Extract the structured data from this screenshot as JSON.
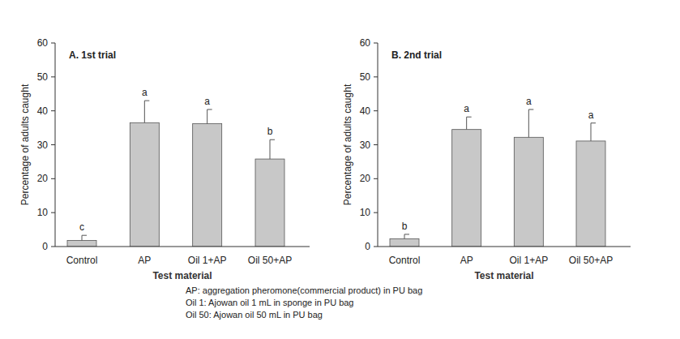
{
  "chart_data": [
    {
      "type": "bar",
      "title": "A. 1st trial",
      "categories": [
        "Control",
        "AP",
        "Oil 1+AP",
        "Oil 50+AP"
      ],
      "values": [
        1.8,
        36.5,
        36.2,
        25.8
      ],
      "errors": [
        1.5,
        6.5,
        4.2,
        5.7
      ],
      "annotations": [
        "c",
        "a",
        "a",
        "b"
      ],
      "color": "#c8c8c8",
      "x_label": "Test material",
      "y_label": "Percentage of adults caught",
      "ylim": [
        0,
        60
      ],
      "yticks": [
        0,
        10,
        20,
        30,
        40,
        50,
        60
      ],
      "grid": false
    },
    {
      "type": "bar",
      "title": "B. 2nd trial",
      "categories": [
        "Control",
        "AP",
        "Oil 1+AP",
        "Oil 50+AP"
      ],
      "values": [
        2.3,
        34.5,
        32.2,
        31.1
      ],
      "errors": [
        1.3,
        3.7,
        8.2,
        5.3
      ],
      "annotations": [
        "b",
        "a",
        "a",
        "a"
      ],
      "color": "#c8c8c8",
      "x_label": "Test material",
      "y_label": "Percentage of adults caught",
      "ylim": [
        0,
        60
      ],
      "yticks": [
        0,
        10,
        20,
        30,
        40,
        50,
        60
      ],
      "grid": false
    }
  ],
  "notes": [
    "AP: aggregation pheromone(commercial product) in PU bag",
    "Oil 1: Ajowan oil 1 mL in sponge in PU bag",
    "Oil 50: Ajowan oil 50 mL in PU bag"
  ]
}
